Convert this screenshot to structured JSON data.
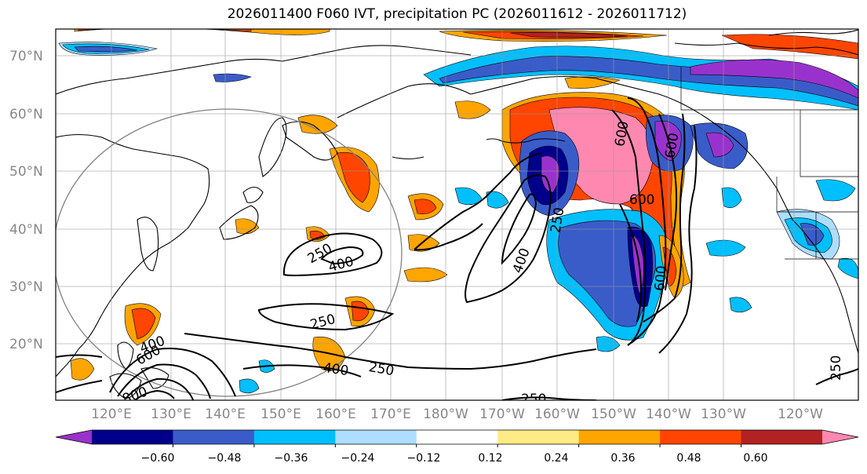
{
  "title": "2026011400 F060 IVT, precipitation PC (2026011612 - 2026011712)",
  "lat_labels": [
    "70°N",
    "60°N",
    "50°N",
    "40°N",
    "30°N",
    "20°N"
  ],
  "lon_labels": [
    "120°E",
    "130°E",
    "140°E",
    "150°E",
    "160°E",
    "170°E",
    "180°W",
    "170°W",
    "160°W",
    "150°W",
    "140°W",
    "130°W",
    "120°W"
  ],
  "colorbar": {
    "colors": [
      "#9932CC",
      "#00008B",
      "#3A5CC9",
      "#00BFFF",
      "#ADDEFF",
      "#FFFFFF",
      "#FFEB85",
      "#FFA500",
      "#FF4500",
      "#B22222",
      "#FF88B0"
    ],
    "tick_labels": [
      "−0.60",
      "−0.48",
      "−0.36",
      "−0.24",
      "−0.12",
      "0.12",
      "0.24",
      "0.36",
      "0.48",
      "0.60"
    ]
  },
  "contour_labels": [
    {
      "text": "250"
    },
    {
      "text": "400"
    },
    {
      "text": "250"
    },
    {
      "text": "250"
    },
    {
      "text": "400"
    },
    {
      "text": "250"
    },
    {
      "text": "400"
    },
    {
      "text": "250"
    },
    {
      "text": "600"
    },
    {
      "text": "600"
    },
    {
      "text": "600"
    },
    {
      "text": "600"
    },
    {
      "text": "250"
    },
    {
      "text": "600"
    },
    {
      "text": "800"
    },
    {
      "text": "400"
    }
  ]
}
